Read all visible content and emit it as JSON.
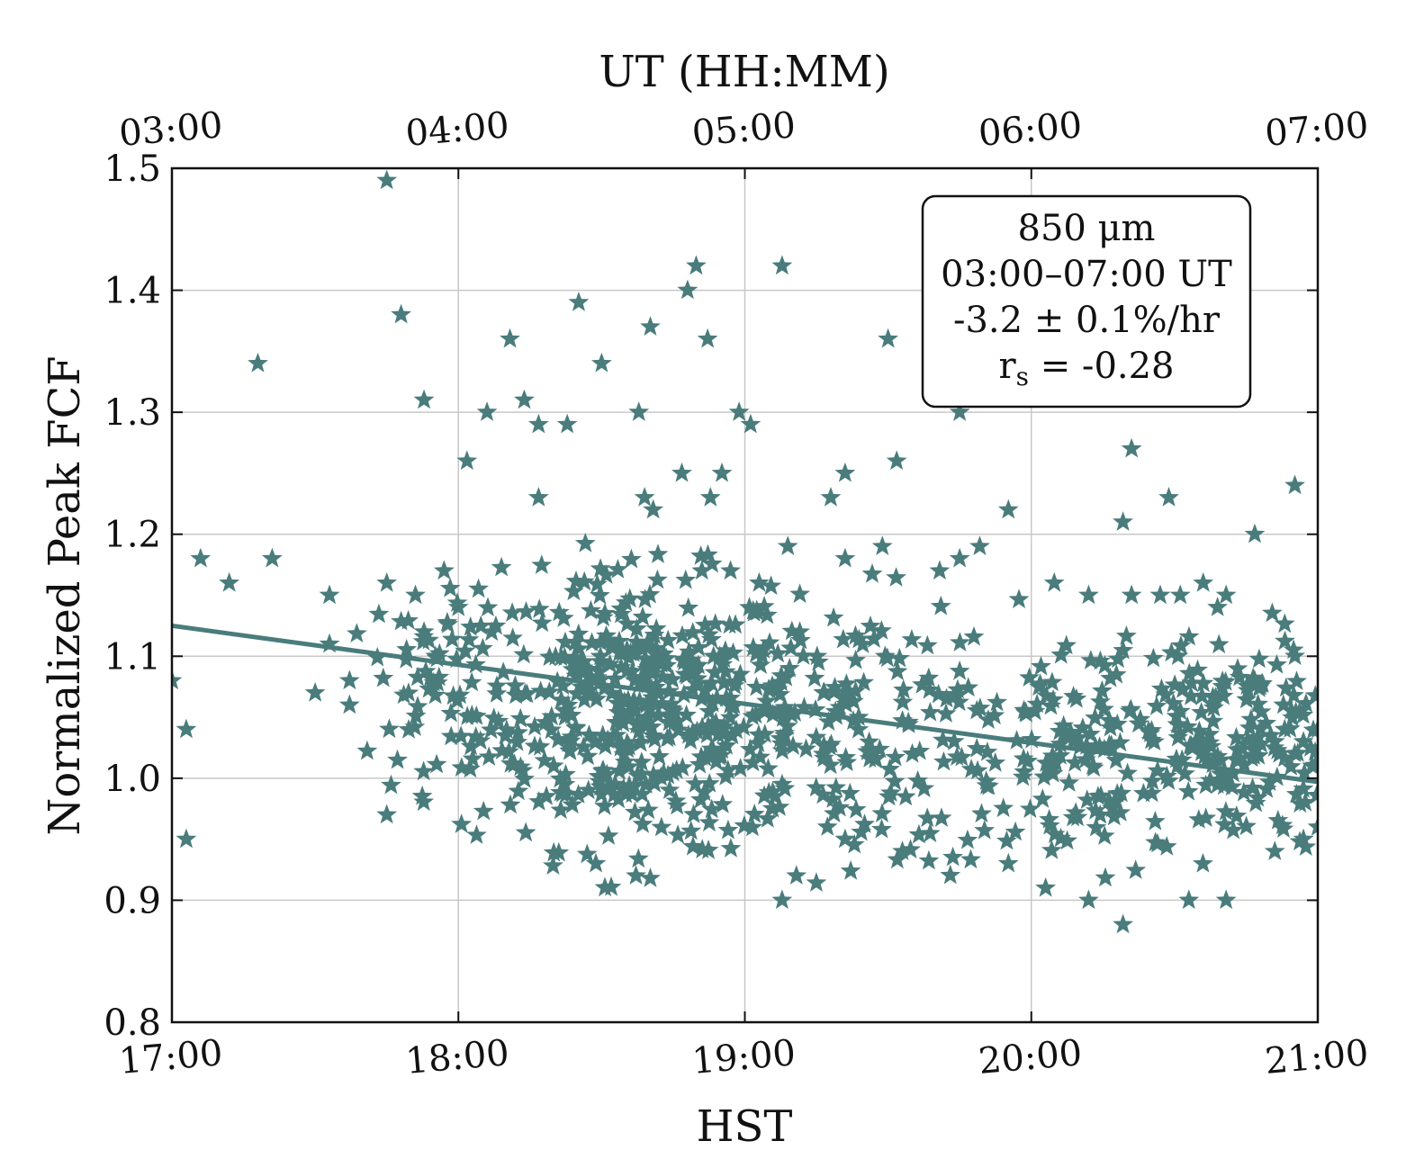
{
  "chart_data": {
    "type": "scatter",
    "xlabel": "HST",
    "x2label": "UT (HH:MM)",
    "ylabel": "Normalized Peak FCF",
    "xlim_hours": [
      17,
      21
    ],
    "ylim": [
      0.8,
      1.5
    ],
    "x_ticks": [
      {
        "value": 17,
        "label": "17:00"
      },
      {
        "value": 18,
        "label": "18:00"
      },
      {
        "value": 19,
        "label": "19:00"
      },
      {
        "value": 20,
        "label": "20:00"
      },
      {
        "value": 21,
        "label": "21:00"
      }
    ],
    "x2_ticks": [
      "03:00",
      "04:00",
      "05:00",
      "06:00",
      "07:00"
    ],
    "y_ticks": [
      "0.8",
      "0.9",
      "1.0",
      "1.1",
      "1.2",
      "1.3",
      "1.4",
      "1.5"
    ],
    "y_tick_values": [
      0.8,
      0.9,
      1.0,
      1.1,
      1.2,
      1.3,
      1.4,
      1.5
    ],
    "grid": true,
    "marker": "star",
    "color": "#4a7c7c",
    "fit_line": {
      "x": [
        17,
        21
      ],
      "y": [
        1.125,
        0.997
      ]
    },
    "annotation": {
      "line1": "850 μm",
      "line2": "03:00–07:00 UT",
      "line3": "-3.2 ± 0.1%/hr",
      "line4_prefix": "r",
      "line4_sub": "s",
      "line4_suffix": " = -0.28",
      "position": "top-right"
    },
    "points": [
      [
        17.75,
        1.49
      ],
      [
        17.8,
        1.38
      ],
      [
        17.3,
        1.34
      ],
      [
        17.88,
        1.31
      ],
      [
        18.03,
        1.26
      ],
      [
        18.1,
        1.3
      ],
      [
        18.18,
        1.36
      ],
      [
        18.23,
        1.31
      ],
      [
        18.28,
        1.29
      ],
      [
        18.38,
        1.29
      ],
      [
        18.42,
        1.39
      ],
      [
        18.5,
        1.34
      ],
      [
        18.63,
        1.3
      ],
      [
        18.67,
        1.37
      ],
      [
        18.8,
        1.4
      ],
      [
        18.83,
        1.42
      ],
      [
        18.87,
        1.36
      ],
      [
        19.13,
        1.42
      ],
      [
        18.98,
        1.3
      ],
      [
        19.02,
        1.29
      ],
      [
        19.5,
        1.36
      ],
      [
        19.53,
        1.26
      ],
      [
        19.75,
        1.3
      ],
      [
        20.35,
        1.27
      ],
      [
        20.48,
        1.23
      ],
      [
        20.92,
        1.24
      ],
      [
        19.3,
        1.23
      ],
      [
        19.35,
        1.25
      ],
      [
        19.92,
        1.22
      ],
      [
        20.32,
        1.21
      ],
      [
        20.78,
        1.2
      ],
      [
        18.28,
        1.23
      ],
      [
        18.65,
        1.23
      ],
      [
        18.68,
        1.22
      ],
      [
        18.78,
        1.25
      ],
      [
        18.88,
        1.23
      ],
      [
        18.92,
        1.25
      ],
      [
        17.1,
        1.18
      ],
      [
        17.2,
        1.16
      ],
      [
        17.35,
        1.18
      ],
      [
        17.55,
        1.15
      ],
      [
        17.75,
        1.16
      ],
      [
        17.85,
        1.15
      ],
      [
        17.95,
        1.17
      ],
      [
        17.0,
        1.08
      ],
      [
        17.05,
        1.04
      ],
      [
        17.05,
        0.95
      ],
      [
        17.55,
        1.11
      ],
      [
        17.5,
        1.07
      ],
      [
        17.62,
        1.06
      ],
      [
        17.62,
        1.08
      ],
      [
        17.75,
        0.97
      ],
      [
        19.13,
        0.9
      ],
      [
        19.18,
        0.92
      ],
      [
        20.32,
        0.88
      ],
      [
        20.2,
        0.9
      ],
      [
        20.05,
        0.91
      ],
      [
        20.55,
        0.9
      ],
      [
        20.68,
        0.9
      ],
      [
        19.92,
        0.93
      ],
      [
        18.48,
        0.93
      ],
      [
        18.62,
        0.92
      ],
      [
        19.35,
        0.95
      ],
      [
        19.55,
        0.94
      ],
      [
        20.85,
        0.94
      ],
      [
        20.95,
        0.95
      ],
      [
        21.0,
        0.96
      ],
      [
        17.88,
        1.12
      ],
      [
        17.92,
        1.1
      ],
      [
        18.0,
        1.14
      ],
      [
        20.78,
        1.08
      ],
      [
        20.85,
        1.03
      ],
      [
        20.88,
        1.06
      ],
      [
        20.92,
        1.1
      ],
      [
        20.95,
        1.03
      ],
      [
        20.98,
        1.01
      ],
      [
        21.0,
        1.04
      ],
      [
        20.65,
        1.14
      ],
      [
        20.68,
        1.15
      ],
      [
        20.45,
        1.15
      ],
      [
        20.35,
        1.15
      ],
      [
        20.2,
        1.15
      ],
      [
        20.08,
        1.16
      ],
      [
        20.52,
        1.15
      ],
      [
        20.6,
        1.16
      ],
      [
        19.82,
        1.19
      ],
      [
        19.75,
        1.18
      ],
      [
        19.68,
        1.17
      ],
      [
        19.48,
        1.19
      ],
      [
        19.35,
        1.18
      ],
      [
        19.15,
        1.19
      ],
      [
        19.05,
        1.16
      ],
      [
        18.95,
        1.17
      ],
      [
        18.85,
        1.17
      ]
    ]
  }
}
